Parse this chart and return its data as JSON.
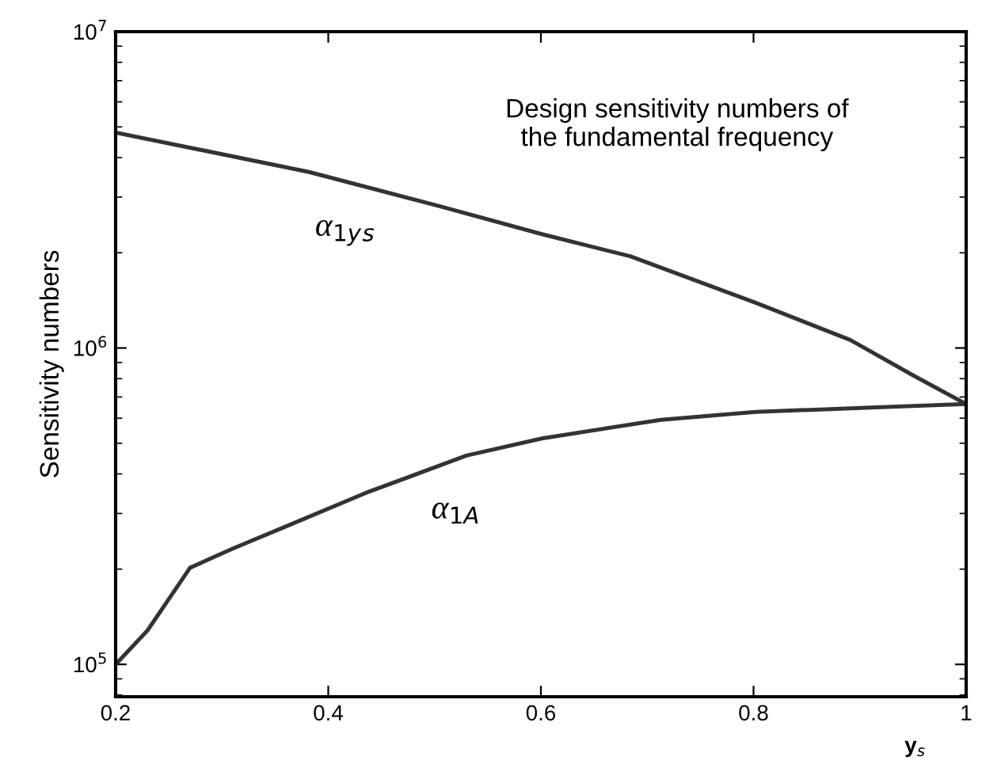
{
  "chart_data": {
    "type": "line",
    "ylabel": "Sensitivity numbers",
    "xlabel": "y$_{s}$",
    "log": "y",
    "grid": false,
    "marker": "none",
    "line_style": "solid",
    "xlim": [
      0.2,
      1
    ],
    "xticks": [
      0.2,
      0.4,
      0.6,
      0.8,
      1
    ],
    "ylim": [
      79000,
      10000000
    ],
    "yticks": [
      {
        "value": 100000,
        "label": "10$^{5}$"
      },
      {
        "value": 1000000,
        "label": "10$^{6}$"
      },
      {
        "value": 10000000,
        "label": "10$^{7}$"
      }
    ],
    "annotations": [
      "Design sensitivity numbers of\nthe fundamental frequency",
      "α$_{1y}$$_{s}$",
      "α$_{1A}$"
    ],
    "series": [
      {
        "color": "#333333",
        "x": [
          0.2,
          0.382,
          0.506,
          0.601,
          0.684,
          0.802,
          0.891,
          0.95,
          1
        ],
        "values": [
          4800000,
          3600000,
          2800000,
          2290000,
          1950000,
          1390000,
          1060000,
          820000,
          665000
        ]
      },
      {
        "color": "#333333",
        "x": [
          0.2,
          0.23,
          0.27,
          0.31,
          0.358,
          0.435,
          0.53,
          0.601,
          0.713,
          0.802,
          0.92,
          1
        ],
        "values": [
          100000,
          128000,
          202000,
          232000,
          271000,
          348000,
          457000,
          518000,
          593000,
          628000,
          650000,
          665000
        ]
      }
    ]
  }
}
